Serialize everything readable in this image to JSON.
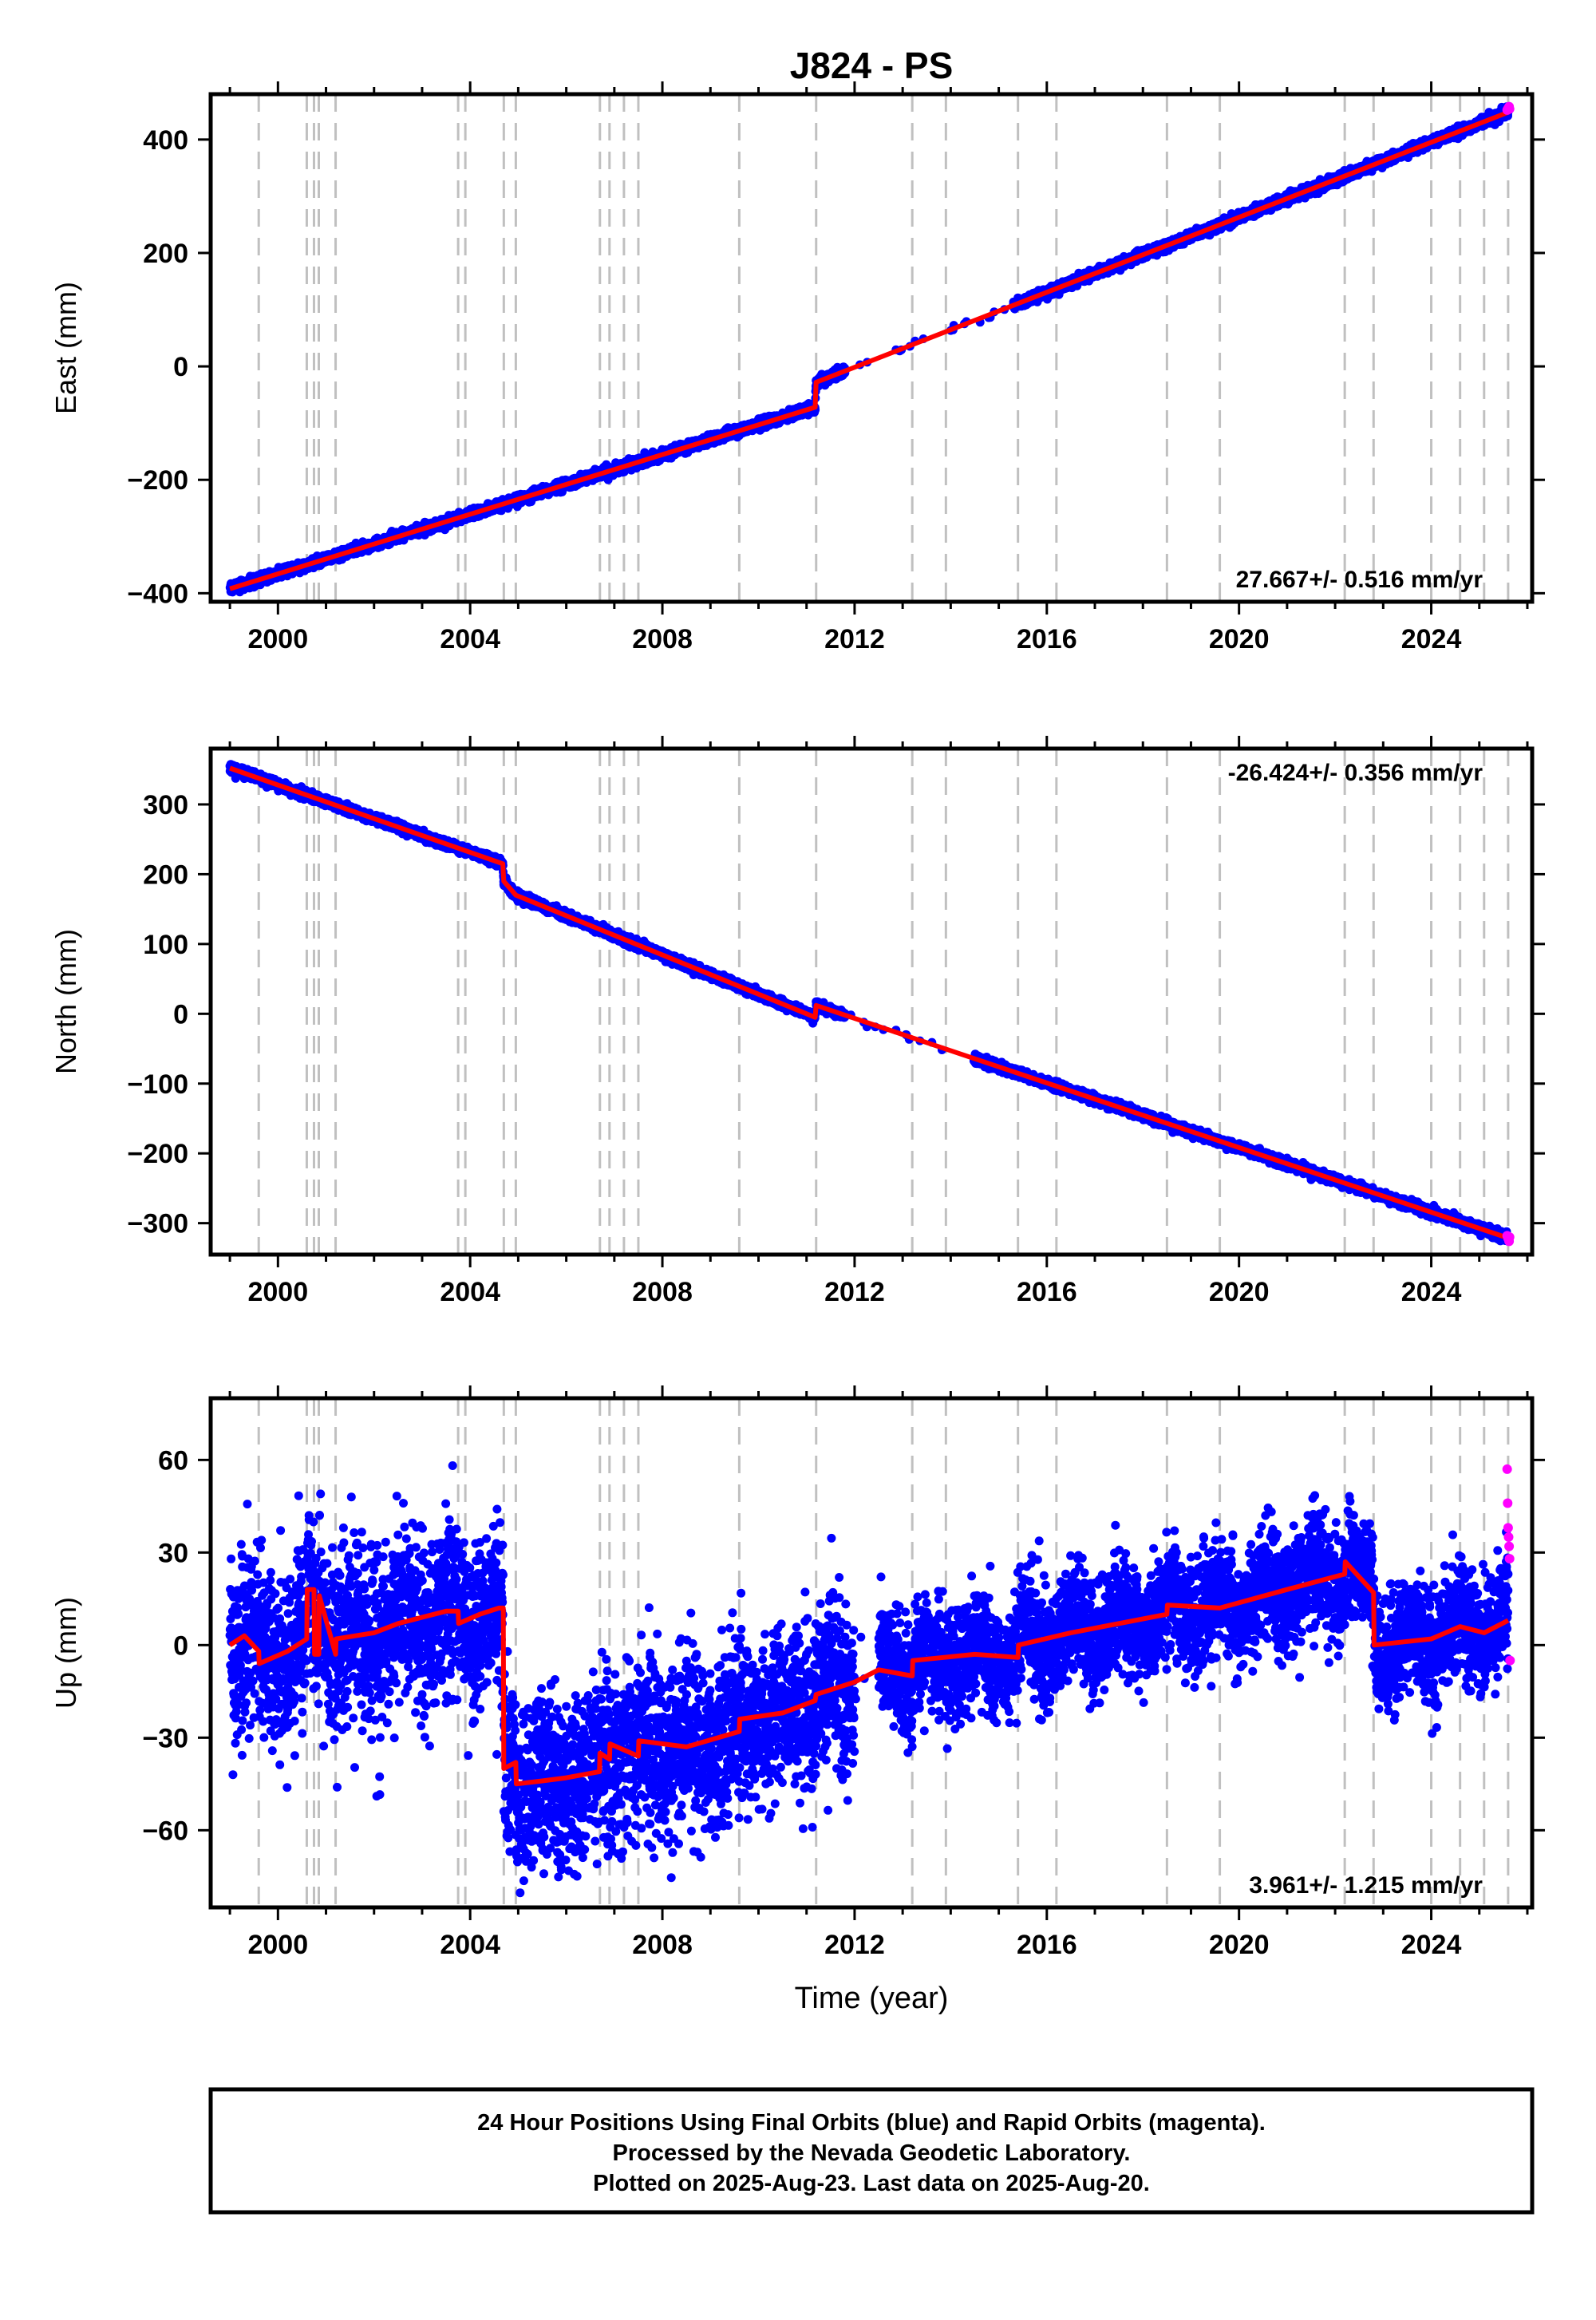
{
  "title": "J824 - PS",
  "footer": {
    "line1": "24 Hour Positions Using Final Orbits (blue) and Rapid Orbits (magenta).",
    "line2": "Processed by the Nevada Geodetic Laboratory.",
    "line3": "Plotted on 2025-Aug-23. Last data on 2025-Aug-20."
  },
  "colors": {
    "final_orbits": "#0000ff",
    "rapid_orbits": "#ff00ff",
    "model": "#ff0000",
    "event_lines": "#c0c0c0",
    "frame": "#000000"
  },
  "chart_data": [
    {
      "type": "scatter",
      "component": "east",
      "ylabel": "East (mm)",
      "xlabel": "",
      "xlim": [
        1998.6,
        2026.1
      ],
      "ylim": [
        -415,
        480
      ],
      "x_ticks": [
        2000,
        2004,
        2008,
        2012,
        2016,
        2020,
        2024
      ],
      "y_ticks": [
        -400,
        -200,
        0,
        200,
        400
      ],
      "grid": false,
      "rate_label": "27.667+/- 0.516 mm/yr",
      "rate_position": "bottom-right",
      "event_lines": [
        1999.6,
        2000.6,
        2000.75,
        2000.85,
        2001.2,
        2003.75,
        2003.9,
        2004.7,
        2004.95,
        2006.7,
        2006.9,
        2007.2,
        2007.5,
        2009.6,
        2011.2,
        2013.2,
        2013.9,
        2015.4,
        2016.2,
        2018.5,
        2019.6,
        2022.2,
        2022.8,
        2024.0,
        2024.6,
        2025.1,
        2025.6
      ],
      "series": [
        {
          "name": "Final Orbits",
          "style": "points",
          "color": "#0000ff",
          "start_date": "1999-01-01",
          "end_date": "2025-08-10",
          "scatter_mm": 4,
          "gap": [
            2011.8,
            2015.3
          ]
        },
        {
          "name": "Rapid Orbits",
          "style": "points",
          "color": "#ff00ff",
          "x": [
            2025.58,
            2025.6,
            2025.62,
            2025.63
          ],
          "y": [
            452,
            455,
            458,
            454
          ]
        },
        {
          "name": "Model",
          "style": "line",
          "color": "#ff0000",
          "x": [
            1999.0,
            2011.18,
            2011.2,
            2025.63
          ],
          "y": [
            -392,
            -72,
            -28,
            449
          ]
        }
      ]
    },
    {
      "type": "scatter",
      "component": "north",
      "ylabel": "North (mm)",
      "xlabel": "",
      "xlim": [
        1998.6,
        2026.1
      ],
      "ylim": [
        -345,
        380
      ],
      "x_ticks": [
        2000,
        2004,
        2008,
        2012,
        2016,
        2020,
        2024
      ],
      "y_ticks": [
        -300,
        -200,
        -100,
        0,
        100,
        200,
        300
      ],
      "grid": false,
      "rate_label": "-26.424+/- 0.356 mm/yr",
      "rate_position": "top-right",
      "event_lines": [
        1999.6,
        2000.6,
        2000.75,
        2000.85,
        2001.2,
        2003.75,
        2003.9,
        2004.7,
        2004.95,
        2006.7,
        2006.9,
        2007.2,
        2007.5,
        2009.6,
        2011.2,
        2013.2,
        2013.9,
        2015.4,
        2016.2,
        2018.5,
        2019.6,
        2022.2,
        2022.8,
        2024.0,
        2024.6,
        2025.1,
        2025.6
      ],
      "series": [
        {
          "name": "Final Orbits",
          "style": "points",
          "color": "#0000ff",
          "start_date": "1999-01-01",
          "end_date": "2025-08-10",
          "scatter_mm": 3,
          "gap": [
            2011.8,
            2014.5
          ]
        },
        {
          "name": "Rapid Orbits",
          "style": "points",
          "color": "#ff00ff",
          "x": [
            2025.58,
            2025.6,
            2025.62,
            2025.63
          ],
          "y": [
            -318,
            -322,
            -326,
            -320
          ]
        },
        {
          "name": "Model",
          "style": "line",
          "color": "#ff0000",
          "x": [
            1999.0,
            2004.68,
            2004.7,
            2004.95,
            2011.18,
            2011.2,
            2025.63
          ],
          "y": [
            352,
            215,
            190,
            170,
            -5,
            12,
            -322
          ]
        }
      ]
    },
    {
      "type": "scatter",
      "component": "up",
      "ylabel": "Up (mm)",
      "xlabel": "Time (year)",
      "xlim": [
        1998.6,
        2026.1
      ],
      "ylim": [
        -85,
        80
      ],
      "x_ticks": [
        2000,
        2004,
        2008,
        2012,
        2016,
        2020,
        2024
      ],
      "y_ticks": [
        -60,
        -30,
        0,
        30,
        60
      ],
      "grid": false,
      "rate_label": "3.961+/- 1.215 mm/yr",
      "rate_position": "bottom-right",
      "event_lines": [
        1999.6,
        2000.6,
        2000.75,
        2000.85,
        2001.2,
        2003.75,
        2003.9,
        2004.7,
        2004.95,
        2006.7,
        2006.9,
        2007.2,
        2007.5,
        2009.6,
        2011.2,
        2013.2,
        2013.9,
        2015.4,
        2016.2,
        2018.5,
        2019.6,
        2022.2,
        2022.8,
        2024.0,
        2024.6,
        2025.1,
        2025.6
      ],
      "series": [
        {
          "name": "Final Orbits",
          "style": "points",
          "color": "#0000ff",
          "start_date": "1999-01-01",
          "end_date": "2025-08-10",
          "scatter_mm": 14,
          "gap": [
            2012.0,
            2012.5
          ]
        },
        {
          "name": "Rapid Orbits",
          "style": "points",
          "color": "#ff00ff",
          "x": [
            2025.58,
            2025.59,
            2025.6,
            2025.61,
            2025.62,
            2025.63,
            2025.64
          ],
          "y": [
            57,
            46,
            38,
            35,
            32,
            28,
            -5
          ]
        },
        {
          "name": "Model",
          "style": "line",
          "color": "#ff0000",
          "x": [
            1999.0,
            1999.3,
            1999.6,
            1999.61,
            2000.2,
            2000.6,
            2000.61,
            2000.75,
            2000.76,
            2000.85,
            2000.86,
            2001.2,
            2001.21,
            2002.0,
            2002.5,
            2003.0,
            2003.5,
            2003.75,
            2003.76,
            2004.2,
            2004.6,
            2004.69,
            2004.7,
            2004.95,
            2004.96,
            2005.5,
            2006.0,
            2006.69,
            2006.7,
            2006.9,
            2006.91,
            2007.5,
            2007.51,
            2008.5,
            2009.6,
            2009.61,
            2010.5,
            2011.18,
            2011.2,
            2012.0,
            2012.5,
            2013.2,
            2013.21,
            2014.5,
            2015.4,
            2015.41,
            2016.5,
            2018.5,
            2018.51,
            2019.6,
            2021.0,
            2022.2,
            2022.21,
            2022.8,
            2022.81,
            2024.0,
            2024.6,
            2025.1,
            2025.6
          ],
          "y": [
            0,
            3,
            -2,
            -6,
            -2,
            2,
            18,
            18,
            -3,
            -3,
            16,
            -3,
            2,
            4,
            7,
            9,
            11,
            11,
            7,
            10,
            12,
            12,
            -40,
            -38,
            -45,
            -44,
            -43,
            -41,
            -35,
            -37,
            -32,
            -36,
            -31,
            -33,
            -28,
            -24,
            -22,
            -18,
            -16,
            -12,
            -8,
            -10,
            -5,
            -3,
            -4,
            0,
            4,
            10,
            13,
            12,
            18,
            23,
            27,
            17,
            0,
            2,
            6,
            4,
            8
          ]
        }
      ]
    }
  ]
}
